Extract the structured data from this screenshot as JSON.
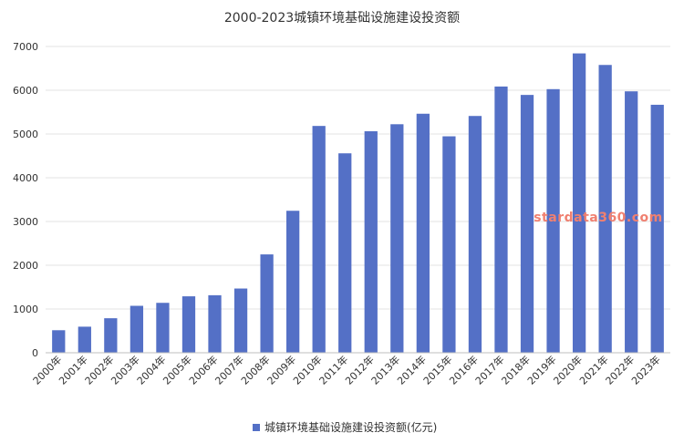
{
  "chart_data": {
    "type": "bar",
    "title": "2000-2023城镇环境基础设施建设投资额",
    "categories": [
      "2000年",
      "2001年",
      "2002年",
      "2003年",
      "2004年",
      "2005年",
      "2006年",
      "2007年",
      "2008年",
      "2009年",
      "2010年",
      "2011年",
      "2012年",
      "2013年",
      "2014年",
      "2015年",
      "2016年",
      "2017年",
      "2018年",
      "2019年",
      "2020年",
      "2021年",
      "2022年",
      "2023年"
    ],
    "series": [
      {
        "name": "城镇环境基础设施建设投资额(亿元)",
        "color": "#5470c6",
        "values": [
          515,
          596,
          789,
          1073,
          1141,
          1290,
          1315,
          1468,
          2248,
          3245,
          5184,
          4558,
          5063,
          5223,
          5463,
          4947,
          5412,
          6085,
          5893,
          6025,
          6842,
          6578,
          5975,
          5668
        ]
      }
    ],
    "ylim": [
      0,
      7000
    ],
    "yticks": [
      0,
      1000,
      2000,
      3000,
      4000,
      5000,
      6000,
      7000
    ],
    "grid": true,
    "legend": "bottom"
  },
  "watermark": {
    "text": "stardata360.com",
    "color": "#f08070"
  }
}
